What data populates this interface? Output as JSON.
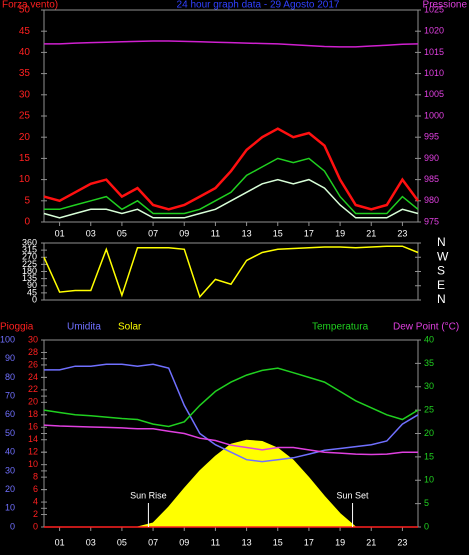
{
  "chart_data": [
    {
      "type": "line",
      "title": "24 hour graph data - 29 Agosto 2017",
      "y_label": "Forza vento)",
      "y2_label": "Pressione",
      "y_color": "#ff2020",
      "y2_color": "#e040e0",
      "title_color": "#3040ff",
      "x": [
        0,
        1,
        2,
        3,
        4,
        5,
        6,
        7,
        8,
        9,
        10,
        11,
        12,
        13,
        14,
        15,
        16,
        17,
        18,
        19,
        20,
        21,
        22,
        23,
        24
      ],
      "xlim": [
        0,
        24
      ],
      "xticks": [
        {
          "value": 1,
          "label": "01"
        },
        {
          "value": 3,
          "label": "03"
        },
        {
          "value": 5,
          "label": "05"
        },
        {
          "value": 7,
          "label": "07"
        },
        {
          "value": 9,
          "label": "09"
        },
        {
          "value": 11,
          "label": "11"
        },
        {
          "value": 13,
          "label": "13"
        },
        {
          "value": 15,
          "label": "15"
        },
        {
          "value": 17,
          "label": "17"
        },
        {
          "value": 19,
          "label": "19"
        },
        {
          "value": 21,
          "label": "21"
        },
        {
          "value": 23,
          "label": "23"
        }
      ],
      "ylim": [
        0,
        50
      ],
      "yticks": [
        0,
        5,
        10,
        15,
        20,
        25,
        30,
        35,
        40,
        45,
        50
      ],
      "y2lim": [
        975,
        1025
      ],
      "y2ticks": [
        975,
        980,
        985,
        990,
        995,
        1000,
        1005,
        1010,
        1015,
        1020,
        1025
      ],
      "series": [
        {
          "color": "#ff1010",
          "values": [
            6,
            5,
            7,
            9,
            10,
            6,
            8,
            4,
            3,
            4,
            6,
            8,
            12,
            17,
            20,
            22,
            20,
            21,
            18,
            10,
            4,
            3,
            4,
            10,
            5
          ]
        },
        {
          "color": "#20d020",
          "values": [
            3,
            3,
            4,
            5,
            6,
            3,
            5,
            2,
            2,
            2,
            3,
            5,
            7,
            11,
            13,
            15,
            14,
            15,
            12,
            6,
            2,
            2,
            2,
            6,
            3
          ]
        },
        {
          "color": "#d8ffd8",
          "values": [
            2,
            1,
            2,
            3,
            3,
            2,
            3,
            1,
            1,
            1,
            2,
            3,
            5,
            7,
            9,
            10,
            9,
            10,
            8,
            4,
            1,
            1,
            1,
            3,
            2
          ]
        },
        {
          "color": "#d020d0",
          "axis": "y2",
          "values": [
            1017,
            1017,
            1017.2,
            1017.3,
            1017.4,
            1017.5,
            1017.6,
            1017.7,
            1017.7,
            1017.6,
            1017.5,
            1017.4,
            1017.3,
            1017.2,
            1017.1,
            1017,
            1016.8,
            1016.6,
            1016.4,
            1016.3,
            1016.3,
            1016.5,
            1016.7,
            1016.9,
            1017
          ]
        }
      ]
    },
    {
      "type": "line",
      "y_color": "#ffffff",
      "y2_color": "#ffffff",
      "x": [
        0,
        1,
        2,
        3,
        4,
        5,
        6,
        7,
        8,
        9,
        10,
        11,
        12,
        13,
        14,
        15,
        16,
        17,
        18,
        19,
        20,
        21,
        22,
        23,
        24
      ],
      "xlim": [
        0,
        24
      ],
      "ylim": [
        0,
        360
      ],
      "yticks": [
        0,
        45,
        90,
        135,
        180,
        225,
        270,
        315,
        360
      ],
      "y2lim": [
        0,
        360
      ],
      "y2ticks": [
        {
          "value": 360,
          "label": "N"
        },
        {
          "value": 270,
          "label": "W"
        },
        {
          "value": 180,
          "label": "S"
        },
        {
          "value": 90,
          "label": "E"
        },
        {
          "value": 0,
          "label": "N"
        }
      ],
      "series": [
        {
          "color": "#ffff00",
          "values": [
            270,
            50,
            60,
            60,
            320,
            30,
            330,
            330,
            330,
            320,
            20,
            130,
            100,
            250,
            300,
            320,
            325,
            330,
            335,
            335,
            330,
            335,
            340,
            340,
            300
          ]
        }
      ]
    },
    {
      "type": "line",
      "y_color": "#ff2020",
      "humidity_color": "#7070ff",
      "y2_color": "#20d020",
      "x": [
        0,
        1,
        2,
        3,
        4,
        5,
        6,
        7,
        8,
        9,
        10,
        11,
        12,
        13,
        14,
        15,
        16,
        17,
        18,
        19,
        20,
        21,
        22,
        23,
        24
      ],
      "xlim": [
        0,
        24
      ],
      "xticks": [
        {
          "value": 1,
          "label": "01"
        },
        {
          "value": 3,
          "label": "03"
        },
        {
          "value": 5,
          "label": "05"
        },
        {
          "value": 7,
          "label": "07"
        },
        {
          "value": 9,
          "label": "09"
        },
        {
          "value": 11,
          "label": "11"
        },
        {
          "value": 13,
          "label": "13"
        },
        {
          "value": 15,
          "label": "15"
        },
        {
          "value": 17,
          "label": "17"
        },
        {
          "value": 19,
          "label": "19"
        },
        {
          "value": 21,
          "label": "21"
        },
        {
          "value": 23,
          "label": "23"
        }
      ],
      "ylim": [
        0,
        30
      ],
      "yticks": [
        0,
        2,
        4,
        6,
        8,
        10,
        12,
        14,
        16,
        18,
        20,
        22,
        24,
        26,
        28,
        30
      ],
      "humidity_lim": [
        0,
        100
      ],
      "humidity_ticks": [
        0,
        10,
        20,
        30,
        40,
        50,
        60,
        70,
        80,
        90,
        100
      ],
      "solar_lim": [
        0,
        1400
      ],
      "y2lim": [
        0,
        40
      ],
      "y2ticks": [
        0,
        5,
        10,
        15,
        20,
        25,
        30,
        35,
        40
      ],
      "annotations": [
        {
          "text": "Sun Rise",
          "x": 6.7
        },
        {
          "text": "Sun Set",
          "x": 19.8
        }
      ],
      "series": [
        {
          "name": "Pioggia",
          "color": "#ff2020",
          "values": [
            0,
            0,
            0,
            0,
            0,
            0,
            0,
            0,
            0,
            0,
            0,
            0,
            0,
            0,
            0,
            0,
            0,
            0,
            0,
            0,
            0,
            0,
            0,
            0,
            0
          ]
        },
        {
          "name": "Umidita",
          "color": "#7070ff",
          "axis": "humidity",
          "values": [
            84,
            84,
            86,
            86,
            87,
            87,
            86,
            87,
            85,
            65,
            50,
            44,
            40,
            36,
            35,
            36,
            37,
            39,
            41,
            42,
            43,
            44,
            46,
            55,
            60
          ]
        },
        {
          "name": "Solar",
          "color": "#ffff00",
          "axis": "solar",
          "fill": true,
          "values": [
            0,
            0,
            0,
            0,
            0,
            0,
            0,
            30,
            150,
            290,
            420,
            530,
            620,
            650,
            640,
            590,
            500,
            370,
            230,
            100,
            0,
            0,
            0,
            0,
            0
          ]
        },
        {
          "name": "Temperatura",
          "color": "#20d020",
          "axis": "y2",
          "values": [
            25,
            24.5,
            24,
            23.8,
            23.5,
            23.2,
            23,
            22,
            21.5,
            22.5,
            26,
            29,
            31,
            32.5,
            33.5,
            34,
            33,
            32,
            31,
            29,
            27,
            25.5,
            24,
            23,
            25
          ]
        },
        {
          "name": "Dew Point (°C)",
          "color": "#e040e0",
          "axis": "y2",
          "values": [
            21.8,
            21.6,
            21.5,
            21.4,
            21.3,
            21.2,
            21,
            21,
            20.5,
            20,
            19,
            18.5,
            17.5,
            17,
            16.5,
            17,
            17,
            16.5,
            16,
            15.8,
            15.6,
            15.5,
            15.6,
            16,
            16
          ]
        }
      ]
    }
  ]
}
